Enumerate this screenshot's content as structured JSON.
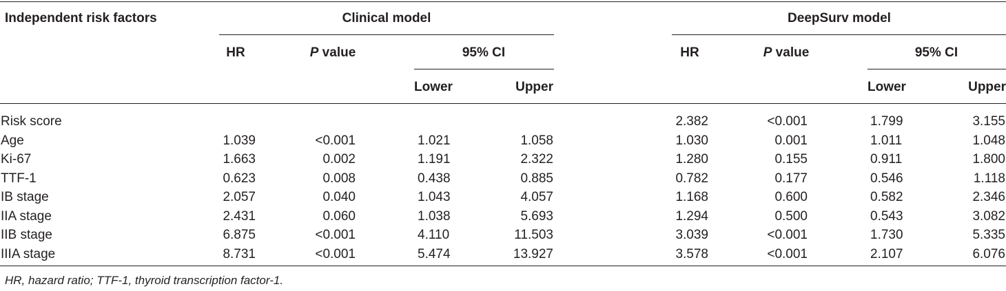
{
  "table": {
    "header": {
      "factor_col": "Independent risk factors",
      "clinical_group": "Clinical model",
      "deepsurv_group": "DeepSurv model",
      "hr": "HR",
      "p_italic": "P",
      "p_rest": " value",
      "ci": "95% CI",
      "lower": "Lower",
      "upper": "Upper"
    },
    "rows": [
      {
        "factor": "Risk score",
        "clinical": [
          "",
          "",
          "",
          ""
        ],
        "deepsurv": [
          "2.382",
          "<0.001",
          "1.799",
          "3.155"
        ]
      },
      {
        "factor": "Age",
        "clinical": [
          "1.039",
          "<0.001",
          "1.021",
          "1.058"
        ],
        "deepsurv": [
          "1.030",
          "0.001",
          "1.011",
          "1.048"
        ]
      },
      {
        "factor": "Ki-67",
        "clinical": [
          "1.663",
          "0.002",
          "1.191",
          "2.322"
        ],
        "deepsurv": [
          "1.280",
          "0.155",
          "0.911",
          "1.800"
        ]
      },
      {
        "factor": "TTF-1",
        "clinical": [
          "0.623",
          "0.008",
          "0.438",
          "0.885"
        ],
        "deepsurv": [
          "0.782",
          "0.177",
          "0.546",
          "1.118"
        ]
      },
      {
        "factor": "IB stage",
        "clinical": [
          "2.057",
          "0.040",
          "1.043",
          "4.057"
        ],
        "deepsurv": [
          "1.168",
          "0.600",
          "0.582",
          "2.346"
        ]
      },
      {
        "factor": "IIA stage",
        "clinical": [
          "2.431",
          "0.060",
          "1.038",
          "5.693"
        ],
        "deepsurv": [
          "1.294",
          "0.500",
          "0.543",
          "3.082"
        ]
      },
      {
        "factor": "IIB stage",
        "clinical": [
          "6.875",
          "<0.001",
          "4.110",
          "11.503"
        ],
        "deepsurv": [
          "3.039",
          "<0.001",
          "1.730",
          "5.335"
        ]
      },
      {
        "factor": "IIIA stage",
        "clinical": [
          "8.731",
          "<0.001",
          "5.474",
          "13.927"
        ],
        "deepsurv": [
          "3.578",
          "<0.001",
          "2.107",
          "6.076"
        ]
      }
    ],
    "footnote": "HR, hazard ratio; TTF-1, thyroid transcription factor-1."
  }
}
